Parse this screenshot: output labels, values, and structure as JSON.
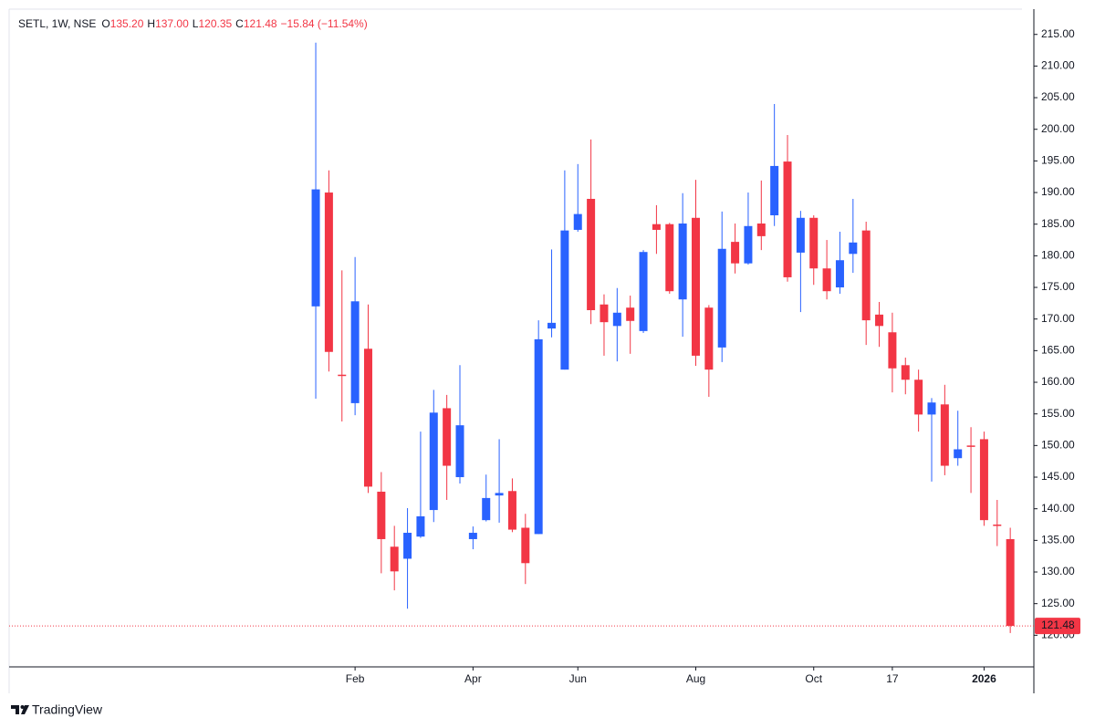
{
  "chart_data": {
    "type": "candlestick",
    "header": {
      "symbol": "SETL, 1W, NSE",
      "fields": [
        {
          "key": "O",
          "value": "135.20"
        },
        {
          "key": "H",
          "value": "137.00"
        },
        {
          "key": "L",
          "value": "120.35"
        },
        {
          "key": "C",
          "value": "121.48"
        }
      ],
      "change": "−15.84 (−11.54%)"
    },
    "up_color": "#2962ff",
    "down_color": "#f23645",
    "open": [
      172,
      190,
      161.2,
      156.7,
      165.3,
      142.7,
      134,
      132.1,
      135.6,
      139.8,
      155.9,
      145,
      135.2,
      138.2,
      142.1,
      142.8,
      137,
      136,
      168.5,
      162,
      184.1,
      189,
      172.3,
      168.9,
      171.8,
      168.1,
      185,
      185,
      173.1,
      186,
      171.8,
      165.5,
      182.2,
      178.8,
      185.1,
      186.4,
      194.9,
      180.5,
      186,
      178,
      175,
      180.3,
      184,
      170.7,
      167.9,
      162.7,
      160.4,
      154.9,
      156.5,
      148,
      150,
      151,
      137.5,
      135.2
    ],
    "high": [
      213.7,
      193.5,
      177.7,
      179.8,
      172.3,
      145.8,
      137.3,
      140.1,
      152.2,
      158.8,
      158,
      162.7,
      137.2,
      145.4,
      151,
      144.8,
      139.2,
      169.8,
      181,
      193.5,
      194.5,
      198.4,
      173.9,
      174.9,
      173.7,
      180.9,
      188,
      185.2,
      189.9,
      192,
      172.2,
      187,
      185.1,
      190,
      191.9,
      204,
      199.1,
      187.1,
      186.4,
      182.5,
      183.8,
      189,
      185.4,
      172.7,
      171,
      163.9,
      162,
      157.5,
      159.6,
      155.5,
      152.9,
      152.2,
      141.4,
      137
    ],
    "low": [
      157.4,
      161.7,
      153.8,
      154.8,
      142.5,
      129.8,
      127.1,
      124.2,
      135.4,
      137.9,
      141.4,
      144,
      133.6,
      138,
      137.8,
      136.3,
      128.1,
      136,
      167.1,
      162,
      183.8,
      169.2,
      164.2,
      163.3,
      164.5,
      167.8,
      180.3,
      174,
      167.2,
      162.6,
      157.7,
      163.2,
      177.2,
      178.6,
      180.9,
      184.7,
      175.9,
      171.1,
      175.4,
      173.1,
      174,
      177.3,
      165.9,
      165.6,
      158.4,
      158.1,
      152.2,
      144.3,
      145.3,
      146.8,
      142.5,
      137.3,
      134.1,
      120.35
    ],
    "close": [
      190.5,
      164.8,
      161,
      172.8,
      143.5,
      135.2,
      130.1,
      136.2,
      138.8,
      155.2,
      146.8,
      153.2,
      136.2,
      141.7,
      142.5,
      136.7,
      131.4,
      166.8,
      169.4,
      184,
      186.6,
      171.4,
      169.5,
      171,
      169.7,
      180.6,
      184.1,
      174.4,
      185.1,
      164.2,
      162,
      181.1,
      178.8,
      184.7,
      183.1,
      194.2,
      176.6,
      186,
      178,
      174.4,
      179.3,
      182.1,
      169.8,
      168.9,
      162.2,
      160.4,
      154.9,
      156.8,
      146.8,
      149.4,
      149.8,
      138.2,
      137.32,
      121.48
    ],
    "last_price": {
      "value": 121.48,
      "label": "121.48"
    },
    "ylim": [
      115,
      219
    ],
    "yticks": [
      {
        "value": 120,
        "label": "120.00"
      },
      {
        "value": 125,
        "label": "125.00"
      },
      {
        "value": 130,
        "label": "130.00"
      },
      {
        "value": 135,
        "label": "135.00"
      },
      {
        "value": 140,
        "label": "140.00"
      },
      {
        "value": 145,
        "label": "145.00"
      },
      {
        "value": 150,
        "label": "150.00"
      },
      {
        "value": 155,
        "label": "155.00"
      },
      {
        "value": 160,
        "label": "160.00"
      },
      {
        "value": 165,
        "label": "165.00"
      },
      {
        "value": 170,
        "label": "170.00"
      },
      {
        "value": 175,
        "label": "175.00"
      },
      {
        "value": 180,
        "label": "180.00"
      },
      {
        "value": 185,
        "label": "185.00"
      },
      {
        "value": 190,
        "label": "190.00"
      },
      {
        "value": 195,
        "label": "195.00"
      },
      {
        "value": 200,
        "label": "200.00"
      },
      {
        "value": 205,
        "label": "205.00"
      },
      {
        "value": 210,
        "label": "210.00"
      },
      {
        "value": 215,
        "label": "215.00"
      }
    ],
    "xlim": [
      -23.4,
      54.8
    ],
    "xticks": [
      {
        "value": 3,
        "label": "Feb"
      },
      {
        "value": 12,
        "label": "Apr"
      },
      {
        "value": 20,
        "label": "Jun"
      },
      {
        "value": 29,
        "label": "Aug"
      },
      {
        "value": 38,
        "label": "Oct"
      },
      {
        "value": 44,
        "label": "17"
      },
      {
        "value": 51,
        "label": "2026",
        "bold": true
      }
    ],
    "footer": {
      "brand": "TradingView"
    }
  }
}
